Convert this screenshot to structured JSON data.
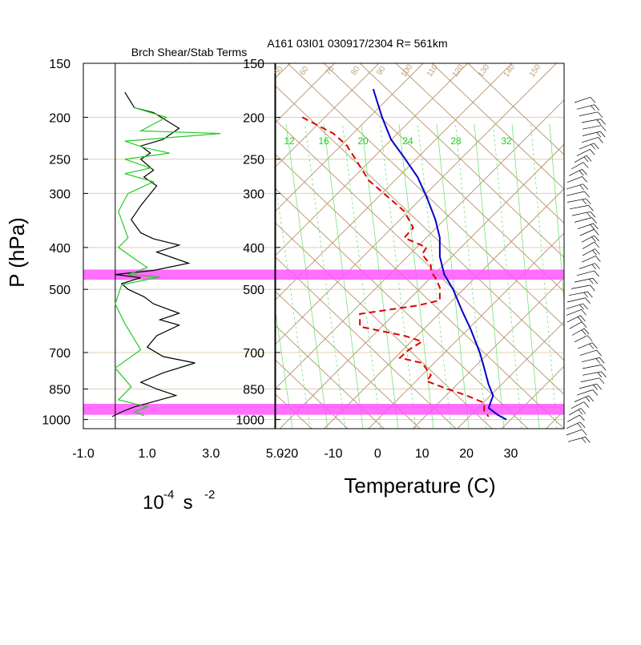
{
  "chart_data": [
    {
      "type": "line",
      "title": "Brch Shear/Stab Terms",
      "xlabel_base": "10",
      "xlabel_exp1": "-4",
      "xlabel_unit": " s ",
      "xlabel_exp2": "-2",
      "ylabel": "P (hPa)",
      "xlim": [
        -1.0,
        5.0
      ],
      "x_ticks": [
        "-1.0",
        "1.0",
        "3.0",
        "5.0"
      ],
      "y_ticks": [
        "150",
        "200",
        "250",
        "300",
        "400",
        "500",
        "700",
        "850",
        "1000"
      ],
      "y_tick_values": [
        150,
        200,
        250,
        300,
        400,
        500,
        700,
        850,
        1000
      ],
      "ylim": [
        150,
        1050
      ],
      "y_scale": "log",
      "series": [
        {
          "color": "#000000",
          "points": [
            [
              0.3,
              175
            ],
            [
              0.6,
              190
            ],
            [
              1.2,
              195
            ],
            [
              2.0,
              212
            ],
            [
              1.5,
              225
            ],
            [
              0.8,
              233
            ],
            [
              1.1,
              242
            ],
            [
              0.8,
              250
            ],
            [
              1.2,
              265
            ],
            [
              0.9,
              275
            ],
            [
              1.3,
              288
            ],
            [
              0.8,
              320
            ],
            [
              0.5,
              345
            ],
            [
              0.8,
              370
            ],
            [
              1.2,
              382
            ],
            [
              2.0,
              395
            ],
            [
              1.3,
              410
            ],
            [
              2.3,
              435
            ],
            [
              1.2,
              452
            ],
            [
              0.0,
              462
            ],
            [
              0.8,
              470
            ],
            [
              0.2,
              485
            ],
            [
              0.4,
              500
            ],
            [
              0.9,
              520
            ],
            [
              1.2,
              540
            ],
            [
              2.0,
              568
            ],
            [
              1.4,
              588
            ],
            [
              2.0,
              605
            ],
            [
              1.3,
              640
            ],
            [
              1.0,
              680
            ],
            [
              1.5,
              715
            ],
            [
              2.5,
              740
            ],
            [
              1.5,
              780
            ],
            [
              0.8,
              820
            ],
            [
              1.3,
              850
            ],
            [
              1.9,
              880
            ],
            [
              1.3,
              905
            ],
            [
              0.6,
              935
            ],
            [
              0.2,
              960
            ],
            [
              -0.1,
              985
            ]
          ]
        },
        {
          "color": "#22cc22",
          "points": [
            [
              0.6,
              190
            ],
            [
              1.6,
              200
            ],
            [
              0.8,
              215
            ],
            [
              3.3,
              218
            ],
            [
              0.3,
              227
            ],
            [
              0.9,
              235
            ],
            [
              1.7,
              242
            ],
            [
              0.3,
              250
            ],
            [
              1.1,
              262
            ],
            [
              0.3,
              270
            ],
            [
              1.2,
              282
            ],
            [
              0.4,
              300
            ],
            [
              0.1,
              330
            ],
            [
              0.4,
              380
            ],
            [
              0.1,
              400
            ],
            [
              0.7,
              430
            ],
            [
              1.0,
              445
            ],
            [
              0.4,
              462
            ],
            [
              1.4,
              468
            ],
            [
              0.2,
              488
            ],
            [
              0.0,
              540
            ],
            [
              0.3,
              600
            ],
            [
              0.8,
              690
            ],
            [
              0.0,
              760
            ],
            [
              0.5,
              840
            ],
            [
              0.1,
              900
            ],
            [
              1.0,
              935
            ],
            [
              0.6,
              960
            ],
            [
              0.9,
              980
            ]
          ]
        }
      ],
      "highlight_bands_hpa": [
        [
          450,
          475
        ],
        [
          920,
          975
        ]
      ]
    },
    {
      "type": "line",
      "title": "A161 03I01 030917/2304 R= 561km",
      "xlabel": "Temperature (C)",
      "xlim": [
        -23,
        42
      ],
      "x_ticks": [
        "-20",
        "-10",
        "0",
        "10",
        "20",
        "30"
      ],
      "x_tick_values": [
        -20,
        -10,
        0,
        10,
        20,
        30
      ],
      "y_ticks": [
        "150",
        "200",
        "250",
        "300",
        "400",
        "500",
        "700",
        "850",
        "1000"
      ],
      "y_tick_values": [
        150,
        200,
        250,
        300,
        400,
        500,
        700,
        850,
        1000
      ],
      "ylim": [
        150,
        1050
      ],
      "y_scale": "log",
      "mixing_ratio_labels": [
        "12",
        "16",
        "20",
        "24",
        "28",
        "32"
      ],
      "theta_labels": [
        "50",
        "60",
        "70",
        "80",
        "90",
        "100",
        "110",
        "120",
        "130",
        "140",
        "150"
      ],
      "series": [
        {
          "name": "temperature",
          "color": "#0000cc",
          "points": [
            [
              -1,
              172
            ],
            [
              1,
              200
            ],
            [
              3,
              225
            ],
            [
              6,
              248
            ],
            [
              9,
              275
            ],
            [
              11,
              305
            ],
            [
              13,
              345
            ],
            [
              14,
              380
            ],
            [
              14,
              420
            ],
            [
              15,
              462
            ],
            [
              17,
              500
            ],
            [
              19,
              560
            ],
            [
              21,
              620
            ],
            [
              23,
              700
            ],
            [
              24,
              760
            ],
            [
              25,
              830
            ],
            [
              26,
              880
            ],
            [
              25,
              940
            ],
            [
              27,
              975
            ],
            [
              29,
              1000
            ]
          ]
        },
        {
          "name": "dewpoint",
          "color": "#dd0000",
          "points": [
            [
              -17,
              200
            ],
            [
              -10,
              218
            ],
            [
              -7,
              232
            ],
            [
              -5,
              250
            ],
            [
              -2,
              280
            ],
            [
              3,
              310
            ],
            [
              6,
              330
            ],
            [
              8,
              360
            ],
            [
              6,
              380
            ],
            [
              11,
              400
            ],
            [
              10,
              415
            ],
            [
              12,
              440
            ],
            [
              12,
              455
            ],
            [
              13,
              470
            ],
            [
              14,
              495
            ],
            [
              14,
              530
            ],
            [
              9,
              545
            ],
            [
              -4,
              570
            ],
            [
              -4,
              610
            ],
            [
              6,
              640
            ],
            [
              10,
              660
            ],
            [
              7,
              690
            ],
            [
              5,
              720
            ],
            [
              10,
              740
            ],
            [
              12,
              790
            ],
            [
              11,
              815
            ],
            [
              15,
              845
            ],
            [
              20,
              880
            ],
            [
              24,
              915
            ],
            [
              24,
              955
            ],
            [
              25,
              985
            ]
          ]
        }
      ],
      "highlight_bands_hpa": [
        [
          450,
          475
        ],
        [
          920,
          975
        ]
      ]
    }
  ]
}
